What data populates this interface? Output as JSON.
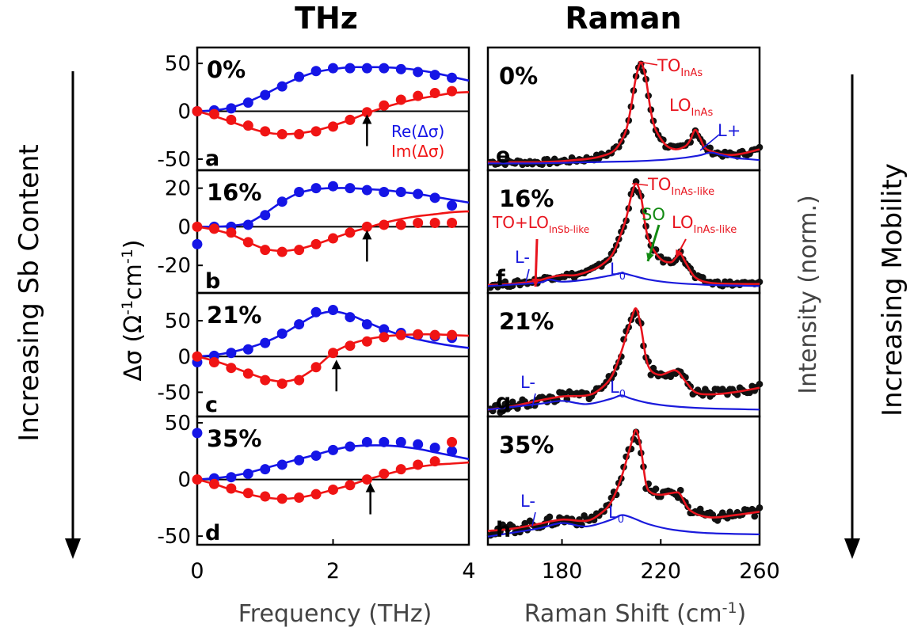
{
  "headers": {
    "thz": "THz",
    "raman": "Raman"
  },
  "side_labels": {
    "left": "Increasing Sb Content",
    "right": "Increasing Mobility"
  },
  "axis_labels": {
    "thz_x": "Frequency (THz)",
    "thz_y_prefix": "Δσ (Ω",
    "thz_y_exp1": "-1",
    "thz_y_mid": "cm",
    "thz_y_exp2": "-1",
    "thz_y_suffix": ")",
    "raman_x": "Raman Shift (cm",
    "raman_x_exp": "-1",
    "raman_x_suffix": ")",
    "raman_y": "Intensity (norm.)"
  },
  "legend": {
    "re": "Re(Δσ)",
    "im": "Im(Δσ)"
  },
  "colors": {
    "re": "#1515e6",
    "im": "#f01414",
    "raman_fit": "#e8141e",
    "phonon": "#1a1adc",
    "so": "#128a12",
    "points": "#111111"
  },
  "chart_data": [
    {
      "type": "scatter",
      "panel": "a",
      "composition": "0%",
      "xlabel": "Frequency (THz)",
      "xlim": [
        0,
        4
      ],
      "ylim": [
        -55,
        60
      ],
      "yticks": [
        -50,
        0,
        50
      ],
      "xticks": [
        0,
        2,
        4
      ],
      "x": [
        0,
        0.25,
        0.5,
        0.75,
        1.0,
        1.25,
        1.5,
        1.75,
        2.0,
        2.25,
        2.5,
        2.75,
        3.0,
        3.25,
        3.5,
        3.75
      ],
      "series": [
        {
          "name": "Re(Δσ)",
          "values": [
            0,
            1,
            3,
            9,
            17,
            26,
            36,
            42,
            45,
            45,
            45,
            45,
            44,
            41,
            38,
            35
          ]
        },
        {
          "name": "Im(Δσ)",
          "values": [
            0,
            -3,
            -9,
            -15,
            -21,
            -24,
            -24,
            -21,
            -16,
            -9,
            -1,
            6,
            12,
            16,
            19,
            21
          ]
        }
      ],
      "fit_x": [
        0,
        0.25,
        0.5,
        0.75,
        1,
        1.25,
        1.5,
        1.75,
        2,
        2.25,
        2.5,
        2.75,
        3,
        3.25,
        3.5,
        3.75,
        4
      ],
      "fit_re": [
        0,
        1,
        4,
        10,
        18,
        27,
        35,
        41,
        44,
        46,
        46,
        46,
        45,
        43,
        40,
        36,
        32
      ],
      "fit_im": [
        0,
        -5,
        -11,
        -17,
        -22,
        -24,
        -23,
        -20,
        -15,
        -9,
        -2,
        4,
        9,
        13,
        16,
        19,
        20
      ],
      "arrow_x": 2.5
    },
    {
      "type": "scatter",
      "panel": "b",
      "composition": "16%",
      "xlim": [
        0,
        4
      ],
      "ylim": [
        -31,
        26
      ],
      "yticks": [
        -20,
        0,
        20
      ],
      "xticks": [
        0,
        2,
        4
      ],
      "x": [
        0,
        0.25,
        0.5,
        0.75,
        1.0,
        1.25,
        1.5,
        1.75,
        2.0,
        2.25,
        2.5,
        2.75,
        3.0,
        3.25,
        3.5,
        3.75
      ],
      "series": [
        {
          "name": "Re(Δσ)",
          "values": [
            -9,
            0,
            0,
            1,
            6,
            13,
            18,
            20,
            21,
            20,
            19,
            18,
            18,
            17,
            15,
            11
          ]
        },
        {
          "name": "Im(Δσ)",
          "values": [
            0,
            -1,
            -3,
            -8,
            -12,
            -13,
            -12,
            -9,
            -6,
            -3,
            0,
            1,
            1,
            2,
            2,
            2
          ]
        }
      ],
      "fit_x": [
        0,
        0.25,
        0.5,
        0.75,
        1,
        1.25,
        1.5,
        1.75,
        2,
        2.25,
        2.5,
        2.75,
        3,
        3.25,
        3.5,
        3.75,
        4
      ],
      "fit_re": [
        0,
        0,
        0.5,
        2,
        7,
        13,
        17.5,
        19.5,
        20,
        20,
        19.5,
        19,
        18,
        17,
        15.5,
        14,
        12.5
      ],
      "fit_im": [
        0,
        -1.5,
        -4,
        -8,
        -11.5,
        -12.5,
        -11.5,
        -9,
        -6,
        -3,
        -0.5,
        2,
        4,
        5.5,
        6.5,
        7.5,
        8
      ],
      "arrow_x": 2.5
    },
    {
      "type": "scatter",
      "panel": "c",
      "composition": "21%",
      "xlim": [
        0,
        4
      ],
      "ylim": [
        -75,
        80
      ],
      "yticks": [
        -50,
        0,
        50
      ],
      "xticks": [
        0,
        2,
        4
      ],
      "x": [
        0,
        0.25,
        0.5,
        0.75,
        1.0,
        1.25,
        1.5,
        1.75,
        2.0,
        2.25,
        2.5,
        2.75,
        3.0,
        3.25,
        3.5,
        3.75
      ],
      "series": [
        {
          "name": "Re(Δσ)",
          "values": [
            -8,
            1,
            5,
            10,
            19,
            32,
            45,
            62,
            65,
            55,
            45,
            38,
            33,
            30,
            28,
            26
          ]
        },
        {
          "name": "Im(Δσ)",
          "values": [
            0,
            -8,
            -16,
            -24,
            -33,
            -38,
            -33,
            -15,
            5,
            15,
            21,
            27,
            30,
            31,
            30,
            30
          ]
        }
      ],
      "fit_x": [
        0,
        0.25,
        0.5,
        0.75,
        1,
        1.25,
        1.5,
        1.75,
        2,
        2.25,
        2.5,
        2.75,
        3,
        3.25,
        3.5,
        3.75,
        4
      ],
      "fit_re": [
        0,
        2,
        6,
        12,
        20,
        31,
        45,
        58,
        63,
        58,
        48,
        38,
        30,
        24,
        19,
        15,
        12
      ],
      "fit_im": [
        0,
        -6,
        -14,
        -23,
        -31,
        -35,
        -30,
        -15,
        5,
        17,
        24,
        28,
        30,
        31,
        31,
        30,
        29
      ],
      "arrow_x": 2.05
    },
    {
      "type": "scatter",
      "panel": "d",
      "composition": "35%",
      "xlim": [
        0,
        4
      ],
      "ylim": [
        -52,
        50
      ],
      "yticks": [
        -50,
        0,
        50
      ],
      "xticks": [
        0,
        2,
        4
      ],
      "x": [
        0,
        0.25,
        0.5,
        0.75,
        1.0,
        1.25,
        1.5,
        1.75,
        2.0,
        2.25,
        2.5,
        2.75,
        3.0,
        3.25,
        3.5,
        3.75
      ],
      "series": [
        {
          "name": "Re(Δσ)",
          "values": [
            41,
            1,
            2,
            5,
            9,
            13,
            17,
            21,
            26,
            29,
            33,
            33,
            33,
            31,
            28,
            25
          ]
        },
        {
          "name": "Im(Δσ)",
          "values": [
            0,
            -4,
            -8,
            -12,
            -15,
            -17,
            -16,
            -13,
            -9,
            -5,
            0,
            5,
            9,
            13,
            16,
            33
          ]
        }
      ],
      "fit_x": [
        0,
        0.25,
        0.5,
        0.75,
        1,
        1.25,
        1.5,
        1.75,
        2,
        2.25,
        2.5,
        2.75,
        3,
        3.25,
        3.5,
        3.75,
        4
      ],
      "fit_re": [
        0,
        1,
        3,
        6,
        10,
        14,
        18,
        22,
        26,
        29,
        30,
        30,
        29,
        27,
        24,
        21,
        18
      ],
      "fit_im": [
        0,
        -4,
        -9,
        -13,
        -16,
        -17,
        -16,
        -13,
        -9,
        -5,
        0,
        4,
        8,
        11,
        13,
        14,
        15
      ],
      "arrow_x": 2.55
    },
    {
      "type": "line",
      "panel": "e",
      "composition": "0%",
      "xlabel": "Raman Shift (cm-1)",
      "xlim": [
        150,
        260
      ],
      "xticks": [
        180,
        220,
        260
      ],
      "ylim": [
        0,
        1.05
      ],
      "fit_x": [
        150,
        160,
        170,
        180,
        185,
        190,
        195,
        200,
        203,
        206,
        208,
        210,
        212,
        214,
        216,
        218,
        222,
        226,
        230,
        232,
        234,
        236,
        238,
        242,
        246,
        250,
        255,
        260
      ],
      "fit_y": [
        0.03,
        0.03,
        0.03,
        0.04,
        0.05,
        0.06,
        0.08,
        0.12,
        0.19,
        0.33,
        0.55,
        0.82,
        0.95,
        0.8,
        0.5,
        0.33,
        0.19,
        0.15,
        0.18,
        0.24,
        0.33,
        0.25,
        0.16,
        0.12,
        0.1,
        0.1,
        0.12,
        0.15
      ],
      "phonon_x": [
        150,
        170,
        190,
        210,
        225,
        235,
        240,
        244,
        250,
        255,
        260
      ],
      "phonon_y": [
        0.02,
        0.02,
        0.03,
        0.04,
        0.06,
        0.09,
        0.12,
        0.1,
        0.07,
        0.06,
        0.05
      ],
      "labels": [
        {
          "base": "TO",
          "sub": "InAs",
          "color": "#e8141e"
        },
        {
          "base": "LO",
          "sub": "InAs",
          "color": "#e8141e"
        },
        {
          "base": "L+",
          "sub": "",
          "color": "#1a1adc"
        }
      ]
    },
    {
      "type": "line",
      "panel": "f",
      "composition": "16%",
      "xlim": [
        150,
        260
      ],
      "xticks": [
        180,
        220,
        260
      ],
      "ylim": [
        0,
        1.05
      ],
      "fit_x": [
        150,
        160,
        170,
        175,
        180,
        185,
        190,
        195,
        200,
        203,
        206,
        208,
        210,
        212,
        214,
        216,
        220,
        224,
        226,
        228,
        230,
        234,
        240,
        250,
        260
      ],
      "fit_y": [
        0.03,
        0.04,
        0.07,
        0.1,
        0.12,
        0.12,
        0.15,
        0.2,
        0.3,
        0.45,
        0.65,
        0.85,
        0.97,
        0.85,
        0.55,
        0.4,
        0.27,
        0.24,
        0.28,
        0.32,
        0.24,
        0.1,
        0.05,
        0.04,
        0.04
      ],
      "phonon_x": [
        150,
        170,
        175,
        180,
        190,
        200,
        204,
        208,
        215,
        225,
        240,
        260
      ],
      "phonon_y": [
        0.02,
        0.05,
        0.08,
        0.06,
        0.08,
        0.12,
        0.14,
        0.12,
        0.08,
        0.05,
        0.03,
        0.02
      ],
      "labels": [
        {
          "base": "TO",
          "sub": "InAs-like",
          "color": "#e8141e"
        },
        {
          "base": "TO+LO",
          "sub": "InSb-like",
          "color": "#e8141e"
        },
        {
          "base": "SO",
          "sub": "",
          "color": "#128a12"
        },
        {
          "base": "LO",
          "sub": "InAs-like",
          "color": "#e8141e"
        },
        {
          "base": "L-",
          "sub": "",
          "color": "#1a1adc"
        },
        {
          "base": "L",
          "sub": "0",
          "color": "#1a1adc"
        }
      ]
    },
    {
      "type": "line",
      "panel": "g",
      "composition": "21%",
      "xlim": [
        150,
        260
      ],
      "xticks": [
        180,
        220,
        260
      ],
      "ylim": [
        0,
        1.05
      ],
      "fit_x": [
        150,
        160,
        170,
        180,
        190,
        195,
        200,
        204,
        208,
        210,
        212,
        214,
        216,
        220,
        226,
        230,
        234,
        240,
        250,
        260
      ],
      "fit_y": [
        0.02,
        0.05,
        0.1,
        0.14,
        0.15,
        0.2,
        0.32,
        0.55,
        0.85,
        0.95,
        0.78,
        0.5,
        0.38,
        0.34,
        0.38,
        0.28,
        0.18,
        0.16,
        0.18,
        0.22
      ],
      "phonon_x": [
        150,
        170,
        180,
        190,
        200,
        204,
        208,
        215,
        225,
        240,
        260
      ],
      "phonon_y": [
        0.02,
        0.07,
        0.1,
        0.07,
        0.12,
        0.15,
        0.12,
        0.08,
        0.05,
        0.03,
        0.02
      ],
      "labels": [
        {
          "base": "L-",
          "sub": "",
          "color": "#1a1adc"
        },
        {
          "base": "L",
          "sub": "0",
          "color": "#1a1adc"
        }
      ]
    },
    {
      "type": "line",
      "panel": "h",
      "composition": "35%",
      "xlim": [
        150,
        260
      ],
      "xticks": [
        180,
        220,
        260
      ],
      "ylim": [
        0,
        1.05
      ],
      "fit_x": [
        150,
        160,
        170,
        180,
        190,
        196,
        200,
        204,
        208,
        210,
        212,
        214,
        216,
        220,
        226,
        228,
        232,
        240,
        250,
        260
      ],
      "fit_y": [
        0.08,
        0.1,
        0.14,
        0.18,
        0.17,
        0.24,
        0.34,
        0.55,
        0.85,
        0.97,
        0.8,
        0.5,
        0.42,
        0.4,
        0.42,
        0.4,
        0.26,
        0.2,
        0.22,
        0.25
      ],
      "phonon_x": [
        150,
        170,
        180,
        190,
        200,
        204,
        208,
        215,
        225,
        240,
        260
      ],
      "phonon_y": [
        0.03,
        0.1,
        0.15,
        0.12,
        0.18,
        0.22,
        0.2,
        0.14,
        0.09,
        0.06,
        0.05
      ],
      "labels": [
        {
          "base": "L-",
          "sub": "",
          "color": "#1a1adc"
        },
        {
          "base": "L",
          "sub": "0",
          "color": "#1a1adc"
        }
      ]
    }
  ]
}
